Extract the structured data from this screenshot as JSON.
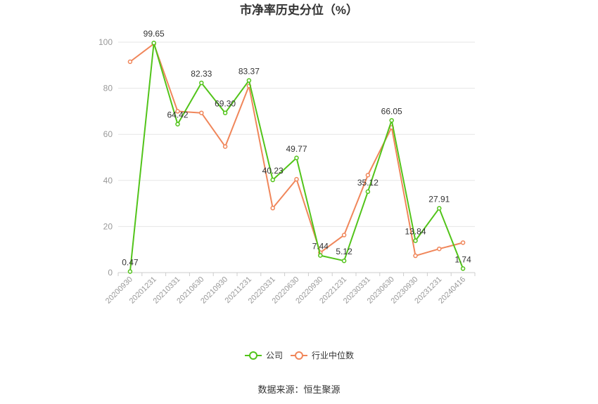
{
  "chart_data": {
    "type": "line",
    "title": "市净率历史分位（%）",
    "categories": [
      "20200930",
      "20201231",
      "20210331",
      "20210630",
      "20210930",
      "20211231",
      "20220331",
      "20220630",
      "20220930",
      "20221231",
      "20230331",
      "20230630",
      "20230930",
      "20231231",
      "20240416"
    ],
    "series": [
      {
        "name": "公司",
        "color": "#52c41a",
        "values": [
          0.47,
          99.65,
          64.42,
          82.33,
          69.3,
          83.37,
          40.23,
          49.77,
          7.44,
          5.12,
          35.12,
          66.05,
          13.84,
          27.91,
          1.74
        ],
        "labels": [
          "0.47",
          "99.65",
          "64.42",
          "82.33",
          "69.30",
          "83.37",
          "40.23",
          "49.77",
          "7.44",
          "5.12",
          "35.12",
          "66.05",
          "13.84",
          "27.91",
          "1.74"
        ]
      },
      {
        "name": "行业中位数",
        "color": "#f0865a",
        "values": [
          91.5,
          99.3,
          70.0,
          69.3,
          54.7,
          81.0,
          28.0,
          40.5,
          8.7,
          16.3,
          42.3,
          63.0,
          7.3,
          10.3,
          13.0
        ]
      }
    ],
    "ylim": [
      0,
      100
    ],
    "yticks": [
      "0",
      "20",
      "40",
      "60",
      "80",
      "100"
    ],
    "grid": true,
    "legend": "bottom",
    "source": "数据来源：恒生聚源"
  }
}
